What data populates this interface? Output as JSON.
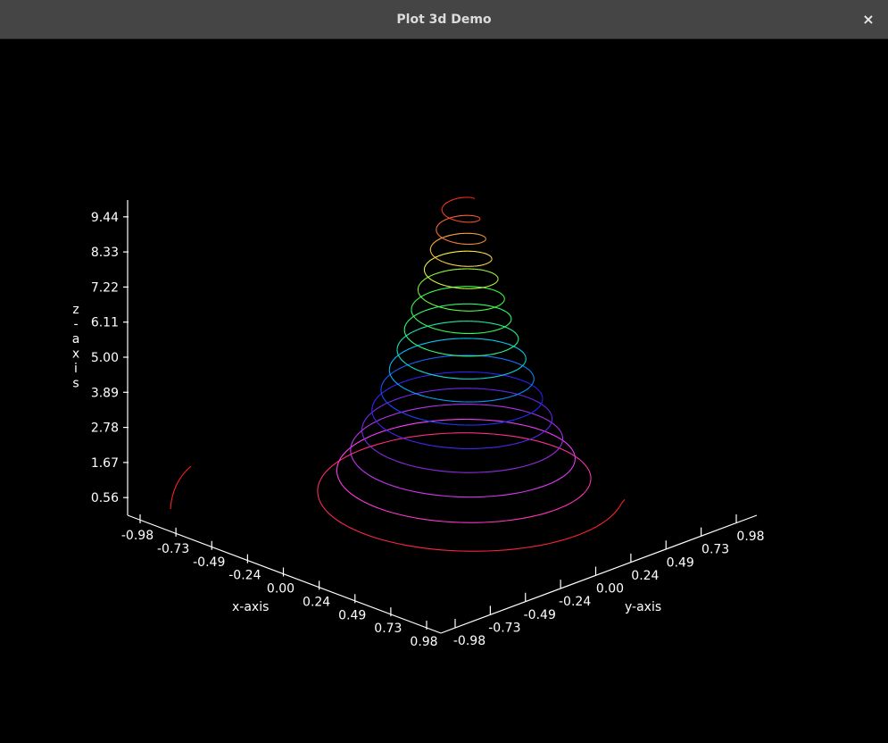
{
  "window": {
    "title": "Plot 3d Demo",
    "close_glyph": "×"
  },
  "chart_data": {
    "type": "line",
    "subtype": "3d-parametric-spiral",
    "xlabel": "x-axis",
    "ylabel": "y-axis",
    "zlabel": "z-axis",
    "xlim": [
      -0.98,
      0.98
    ],
    "ylim": [
      -0.98,
      0.98
    ],
    "zlim": [
      0.0,
      10.0
    ],
    "x_ticks": [
      "-0.98",
      "-0.73",
      "-0.49",
      "-0.24",
      "0.00",
      "0.24",
      "0.49",
      "0.73",
      "0.98"
    ],
    "y_ticks": [
      "-0.98",
      "-0.73",
      "-0.49",
      "-0.24",
      "0.00",
      "0.24",
      "0.49",
      "0.73",
      "0.98"
    ],
    "z_ticks": [
      "0.56",
      "1.67",
      "2.78",
      "3.89",
      "5.00",
      "6.11",
      "7.22",
      "8.33",
      "9.44"
    ],
    "z_tick_values": [
      0.56,
      1.67,
      2.78,
      3.89,
      5.0,
      6.11,
      7.22,
      8.33,
      9.44
    ],
    "series": [
      {
        "values": {
          "z": [
            0.5,
            10.0
          ],
          "radius": [
            1.0,
            0.09
          ],
          "turns": 15,
          "colormap": [
            "#ff2020",
            "#ff40ff",
            "#8a2be2",
            "#2020ff",
            "#00c8ff",
            "#30ff80",
            "#40ff40",
            "#ffff40",
            "#ff8040",
            "#ff2020"
          ]
        }
      }
    ],
    "grid": false,
    "legend": "none",
    "background": "#000000",
    "axis_color": "#ffffff"
  }
}
